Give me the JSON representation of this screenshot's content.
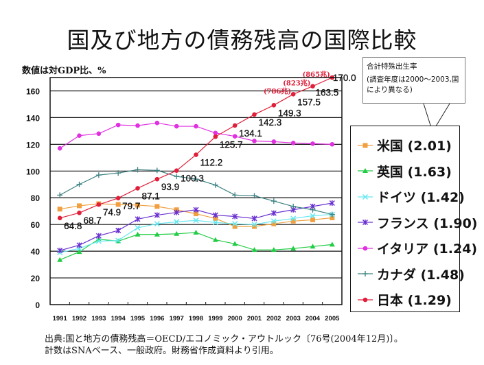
{
  "title": "国及び地方の債務残高の国際比較",
  "unit_note": "数値は対GDP比、%",
  "callout": {
    "line1": "合計特殊出生率",
    "line2": "(調査年度は2000〜2003,国により異なる)"
  },
  "footer": {
    "line1": "出典:国と地方の債務残高＝OECD/エコノミック・アウトルック〔76号(2004年12月)〕。",
    "line2": "計数はSNAベース、一般政府。財務省作成資料より引用。"
  },
  "chart_data": {
    "type": "line",
    "title": "国及び地方の債務残高の国際比較",
    "xlabel": "",
    "ylabel": "数値は対GDP比、%",
    "ylim": [
      0,
      170
    ],
    "yticks": [
      0,
      20,
      40,
      60,
      80,
      100,
      120,
      140,
      160
    ],
    "grid": true,
    "legend_position": "right",
    "x": [
      "1991",
      "1992",
      "1993",
      "1994",
      "1995",
      "1996",
      "1997",
      "1998",
      "1999",
      "2000",
      "2001",
      "2002",
      "2003",
      "2004",
      "2005"
    ],
    "series": [
      {
        "name": "米国",
        "label": "米国 (2.01)",
        "fertility_rate": 2.01,
        "color": "#f0a040",
        "marker": "square",
        "values": [
          71.5,
          74,
          75.5,
          75,
          74.5,
          73.5,
          71,
          68,
          64.5,
          58.5,
          58.5,
          60.5,
          62.5,
          63.5,
          65
        ]
      },
      {
        "name": "英国",
        "label": "英国 (1.63)",
        "fertility_rate": 1.63,
        "color": "#22cc44",
        "marker": "triangle",
        "values": [
          33.5,
          39.5,
          49,
          47.5,
          52.5,
          52.5,
          53,
          54,
          48.5,
          45.5,
          41,
          41,
          42,
          43.5,
          45
        ]
      },
      {
        "name": "ドイツ",
        "label": "ドイツ (1.42)",
        "fertility_rate": 1.42,
        "color": "#66e8f0",
        "marker": "x",
        "values": [
          39,
          42,
          47.5,
          48,
          57.5,
          60.5,
          62,
          63,
          61.5,
          60.5,
          60,
          62.5,
          64.5,
          66.5,
          67.5
        ]
      },
      {
        "name": "フランス",
        "label": "フランス (1.90)",
        "fertility_rate": 1.9,
        "color": "#6a30d0",
        "marker": "star",
        "values": [
          40.5,
          44.5,
          51.5,
          55.5,
          64,
          67,
          69,
          71,
          67,
          66,
          64.5,
          68.5,
          71,
          73.5,
          76
        ]
      },
      {
        "name": "イタリア",
        "label": "イタリア (1.24)",
        "fertility_rate": 1.24,
        "color": "#e030e0",
        "marker": "circle",
        "values": [
          117,
          126.5,
          128,
          134.5,
          134,
          136,
          133.5,
          133.5,
          128.5,
          126,
          122.5,
          122,
          121,
          120.5,
          120
        ]
      },
      {
        "name": "カナダ",
        "label": "カナダ (1.48)",
        "fertility_rate": 1.48,
        "color": "#3a8080",
        "marker": "plus",
        "values": [
          82,
          90,
          97,
          98.5,
          101,
          100.5,
          96,
          94,
          89.5,
          82,
          81.5,
          77.5,
          73.5,
          71,
          67.5
        ]
      },
      {
        "name": "日本",
        "label": "日本 (1.29)",
        "fertility_rate": 1.29,
        "color": "#e0203a",
        "marker": "circle",
        "values": [
          64.8,
          68.7,
          74.9,
          79.7,
          87.1,
          93.9,
          100.3,
          112.2,
          125.7,
          134.1,
          142.3,
          149.3,
          157.5,
          163.5,
          170.0
        ]
      }
    ],
    "data_labels": {
      "series": "日本",
      "values": [
        "64.8",
        "68.7",
        "74.9",
        "79.7",
        "87.1",
        "93.9",
        "100.3",
        "112.2",
        "125.7",
        "134.1",
        "142.3",
        "149.3",
        "157.5",
        "163.5",
        "170.0"
      ]
    },
    "annotations": [
      {
        "year": "2003",
        "text": "(786兆)"
      },
      {
        "year": "2004",
        "text": "(823兆)"
      },
      {
        "year": "2005",
        "text": "(865兆)"
      }
    ]
  }
}
